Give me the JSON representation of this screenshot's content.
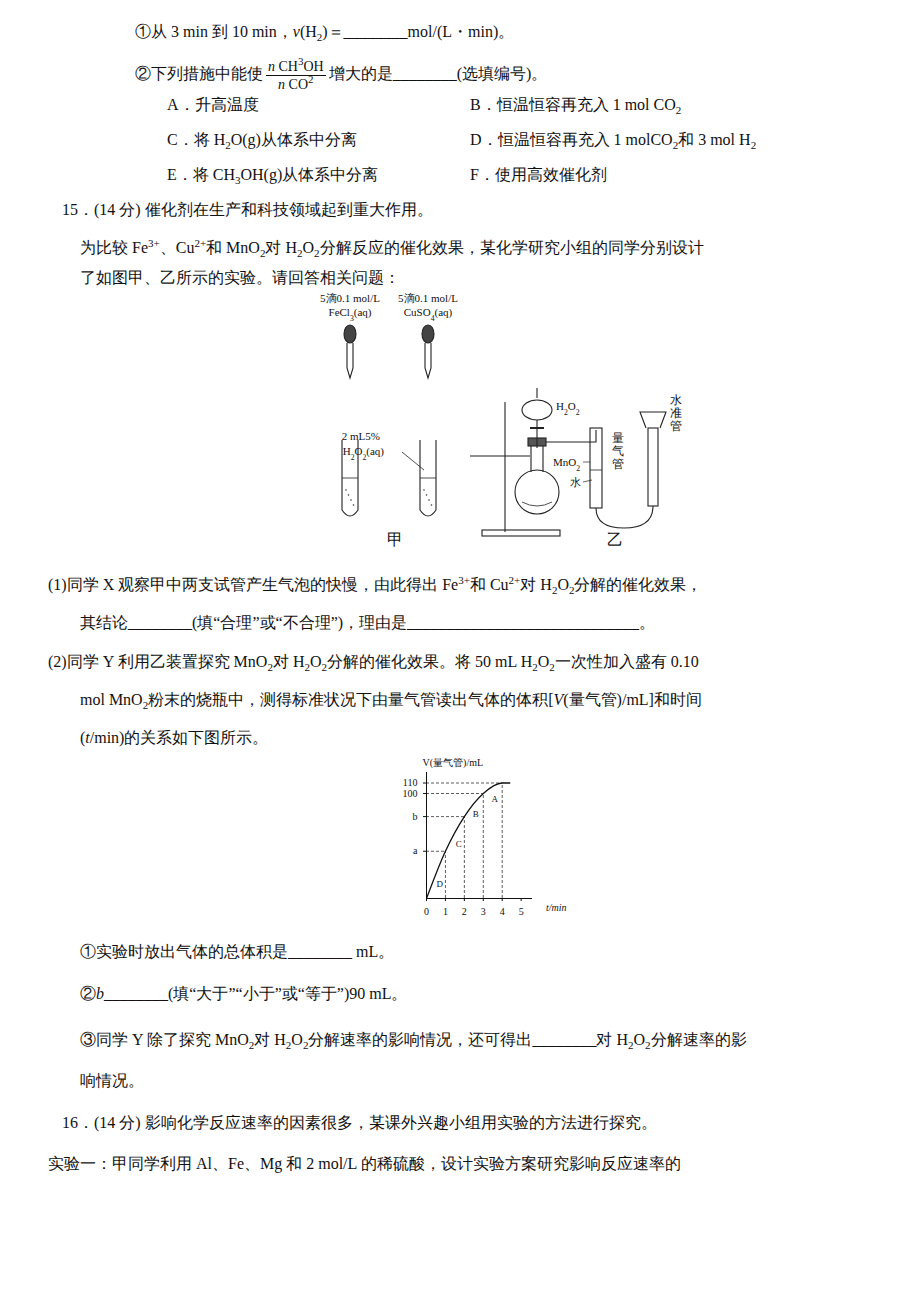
{
  "document": {
    "q14": {
      "item1": [
        "①从 3 min 到 10 min，",
        {
          "i": "v"
        },
        "(H",
        {
          "sub": "2"
        },
        ")＝________mol/(L・min)。"
      ],
      "item2": [
        "②下列措施中能使",
        {
          "frac": {
            "num": [
              {
                "i": "n"
              },
              "  CH",
              {
                "sup": "3"
              },
              "OH"
            ],
            "den": [
              {
                "i": "n"
              },
              "  CO",
              {
                "sup": "2"
              }
            ]
          }
        },
        "增大的是________(选填编号)。"
      ],
      "options": [
        [
          "A．升高温度"
        ],
        [
          "B．恒温恒容再充入 1 mol CO",
          {
            "sub": "2"
          }
        ],
        [
          "C．将 H",
          {
            "sub": "2"
          },
          "O(g)从体系中分离"
        ],
        [
          "D．恒温恒容再充入 1 molCO",
          {
            "sub": "2"
          },
          "和 3 mol H",
          {
            "sub": "2"
          }
        ],
        [
          "E．将 CH",
          {
            "sub": "3"
          },
          "OH(g)从体系中分离"
        ],
        [
          "F．使用高效催化剂"
        ]
      ]
    },
    "q15": {
      "stem": [
        "15．(14 分) 催化剂在生产和科技领域起到重大作用。"
      ],
      "intro": [
        [
          "为比较 Fe",
          {
            "sup": "3+"
          },
          "、Cu",
          {
            "sup": "2+"
          },
          "和 MnO",
          {
            "sub": "2"
          },
          "对 H",
          {
            "sub": "2"
          },
          "O",
          {
            "sub": "2"
          },
          "分解反应的催化效果，某化学研究小组的同学分别设计"
        ],
        [
          "了如图甲、乙所示的实验。请回答相关问题："
        ]
      ],
      "figure": {
        "jia": {
          "reagent1": [
            [
              "5滴0.1 mol/L"
            ],
            [
              "FeCl",
              {
                "sub": "3"
              },
              "(aq)"
            ]
          ],
          "reagent2": [
            [
              "5滴0.1 mol/L"
            ],
            [
              "CuSO",
              {
                "sub": "4"
              },
              "(aq)"
            ]
          ],
          "solution": [
            [
              "2 mL5%"
            ],
            [
              "H",
              {
                "sub": "2"
              },
              "O",
              {
                "sub": "2"
              },
              "(aq)"
            ]
          ],
          "caption": "甲"
        },
        "yi": {
          "funnel": [
            "H",
            {
              "sub": "2"
            },
            "O",
            {
              "sub": "2"
            }
          ],
          "solid": [
            "MnO",
            {
              "sub": "2"
            }
          ],
          "liquid": "水",
          "tube1": "量气管",
          "tube2": "水准管",
          "caption": "乙"
        }
      },
      "part1": [
        [
          "(1)同学 X 观察甲中两支试管产生气泡的快慢，由此得出 Fe",
          {
            "sup": "3+"
          },
          "和 Cu",
          {
            "sup": "2+"
          },
          "对 H",
          {
            "sub": "2"
          },
          "O",
          {
            "sub": "2"
          },
          "分解的催化效果，"
        ],
        [
          "其结论________(填“合理”或“不合理”)，理由是_____________________________。"
        ]
      ],
      "part2": [
        [
          "(2)同学 Y 利用乙装置探究 MnO",
          {
            "sub": "2"
          },
          "对 H",
          {
            "sub": "2"
          },
          "O",
          {
            "sub": "2"
          },
          "分解的催化效果。将 50 mL H",
          {
            "sub": "2"
          },
          "O",
          {
            "sub": "2"
          },
          "一次性加入盛有 0.10"
        ],
        [
          "mol MnO",
          {
            "sub": "2"
          },
          "粉末的烧瓶中，测得标准状况下由量气管读出气体的体积[",
          {
            "i": "V"
          },
          "(量气管)/mL]和时间"
        ],
        [
          "(",
          {
            "i": "t"
          },
          "/min)的关系如下图所示。"
        ]
      ],
      "sub1": [
        "①实验时放出气体的总体积是________ mL。"
      ],
      "sub2": [
        "②",
        {
          "i": "b"
        },
        "________(填“大于”“小于”或“等于”)90 mL。"
      ],
      "sub3": [
        [
          "③同学 Y 除了探究 MnO",
          {
            "sub": "2"
          },
          "对 H",
          {
            "sub": "2"
          },
          "O",
          {
            "sub": "2"
          },
          "分解速率的影响情况，还可得出________对 H",
          {
            "sub": "2"
          },
          "O",
          {
            "sub": "2"
          },
          "分解速率的影"
        ],
        [
          "响情况。"
        ]
      ]
    },
    "q16": {
      "stem": [
        "16．(14 分) 影响化学反应速率的因素很多，某课外兴趣小组用实验的方法进行探究。"
      ],
      "exp1": [
        "实验一：甲同学利用 Al、Fe、Mg 和 2 mol/L 的稀硫酸，设计实验方案研究影响反应速率的"
      ]
    }
  },
  "chart_data": {
    "type": "line",
    "x_label": "t/min",
    "y_label": "V(量气管)/mL",
    "x": [
      0,
      1,
      2,
      3,
      4,
      4.4
    ],
    "values": [
      0,
      45,
      78,
      100,
      110,
      110
    ],
    "color": "#111111",
    "line_style": "solid",
    "xlim": [
      0,
      5.6
    ],
    "ylim": [
      0,
      120
    ],
    "xticks": [
      0,
      1,
      2,
      3,
      4,
      5
    ],
    "yticks": [
      {
        "value": 45,
        "label": "a"
      },
      {
        "value": 78,
        "label": "b"
      },
      100,
      110
    ],
    "annotations": [
      {
        "text": "D",
        "x": 0.7,
        "y": 14
      },
      {
        "text": "C",
        "x": 1.7,
        "y": 52
      },
      {
        "text": "B",
        "x": 2.6,
        "y": 80
      },
      {
        "text": "A",
        "x": 3.6,
        "y": 95
      }
    ]
  }
}
